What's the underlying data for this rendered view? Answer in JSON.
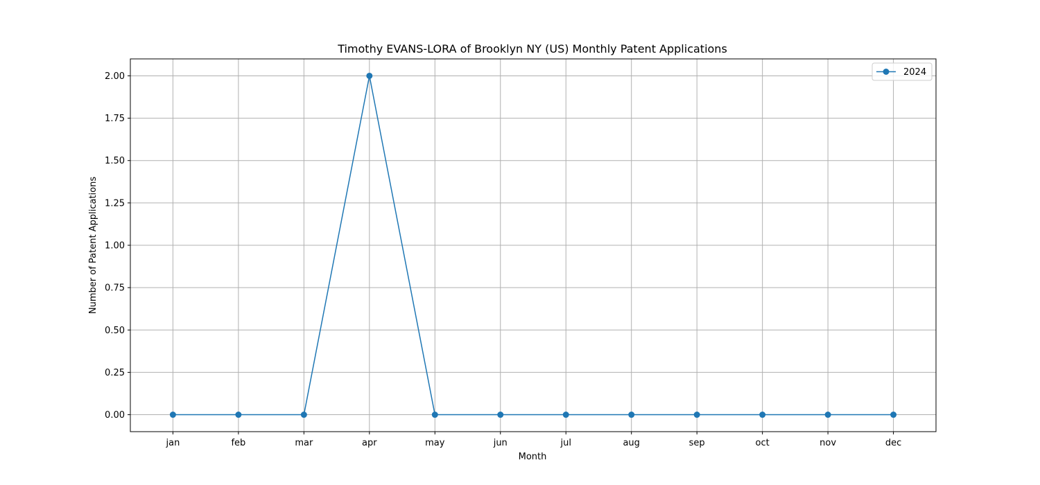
{
  "chart_data": {
    "type": "line",
    "title": "Timothy EVANS-LORA of Brooklyn NY (US) Monthly Patent Applications",
    "xlabel": "Month",
    "ylabel": "Number of Patent Applications",
    "categories": [
      "jan",
      "feb",
      "mar",
      "apr",
      "may",
      "jun",
      "jul",
      "aug",
      "sep",
      "oct",
      "nov",
      "dec"
    ],
    "series": [
      {
        "name": "2024",
        "values": [
          0,
          0,
          0,
          2,
          0,
          0,
          0,
          0,
          0,
          0,
          0,
          0
        ],
        "color": "#1f77b4",
        "marker": "circle"
      }
    ],
    "ylim": [
      -0.1,
      2.1
    ],
    "yticks": [
      0.0,
      0.25,
      0.5,
      0.75,
      1.0,
      1.25,
      1.5,
      1.75,
      2.0
    ],
    "ytick_labels": [
      "0.00",
      "0.25",
      "0.50",
      "0.75",
      "1.00",
      "1.25",
      "1.50",
      "1.75",
      "2.00"
    ],
    "grid": true,
    "legend_position": "top-right",
    "colors": {
      "grid": "#b0b0b0",
      "axes": "#000000",
      "background": "#ffffff",
      "legend_border": "#cccccc"
    }
  }
}
